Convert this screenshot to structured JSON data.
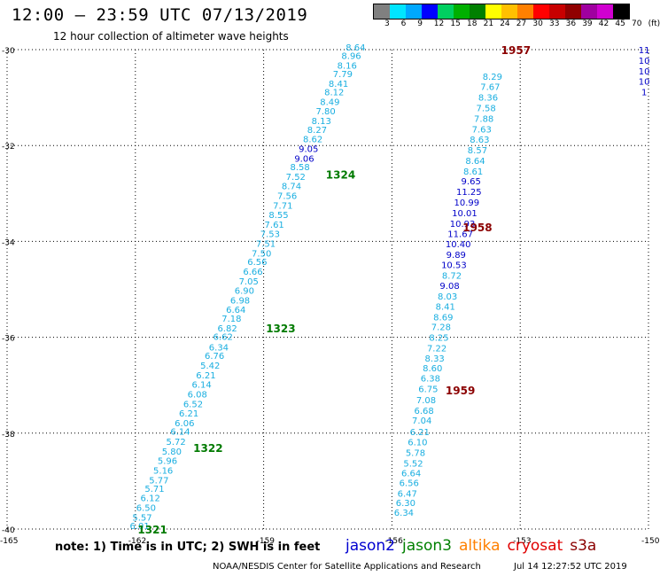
{
  "title": "12:00 – 23:59 UTC 07/13/2019",
  "subtitle": "12 hour collection of altimeter wave heights",
  "colorbar": {
    "labels": [
      "3",
      "6",
      "9",
      "12",
      "15",
      "18",
      "21",
      "24",
      "27",
      "30",
      "33",
      "36",
      "39",
      "42",
      "45",
      "70",
      "(ft)"
    ],
    "colors": [
      "#808080",
      "#00e5ff",
      "#00a8ff",
      "#0000ff",
      "#00d060",
      "#00b000",
      "#008000",
      "#ffff00",
      "#ffc000",
      "#ff8000",
      "#ff0000",
      "#c80000",
      "#900000",
      "#a000a0",
      "#d000d0",
      "#000000"
    ]
  },
  "note": "note:  1) Time is in UTC;  2) SWH is in feet",
  "legend": [
    {
      "label": "jason2",
      "color": "#0000d0"
    },
    {
      "label": "jason3",
      "color": "#008000"
    },
    {
      "label": "altika",
      "color": "#ff8000"
    },
    {
      "label": "cryosat",
      "color": "#e00000"
    },
    {
      "label": "s3a",
      "color": "#8b0000"
    }
  ],
  "credit": "NOAA/NESDIS Center for Satellite Applications and Research",
  "timestamp": "Jul 14 12:27:52 UTC 2019",
  "axes": {
    "lat_labels": [
      "-30",
      "-32",
      "-34",
      "-36",
      "-38",
      "-40"
    ],
    "lon_labels": [
      "-165",
      "-162",
      "-159",
      "-156",
      "-153",
      "-150"
    ]
  },
  "tracks": [
    {
      "name": "track-1321-1324",
      "color": "#19aee0",
      "points": [
        {
          "lon": -161.9,
          "lat": -39.93,
          "v": "6.01"
        },
        {
          "lon": -161.84,
          "lat": -39.75,
          "v": "5.57"
        },
        {
          "lon": -161.75,
          "lat": -39.55,
          "v": "6.50"
        },
        {
          "lon": -161.65,
          "lat": -39.34,
          "v": "6.12"
        },
        {
          "lon": -161.55,
          "lat": -39.15,
          "v": "5.71"
        },
        {
          "lon": -161.45,
          "lat": -38.97,
          "v": "5.77"
        },
        {
          "lon": -161.35,
          "lat": -38.77,
          "v": "5.16"
        },
        {
          "lon": -161.25,
          "lat": -38.57,
          "v": "5.96"
        },
        {
          "lon": -161.15,
          "lat": -38.37,
          "v": "5.80"
        },
        {
          "lon": -161.05,
          "lat": -38.17,
          "v": "5.72"
        },
        {
          "lon": -160.95,
          "lat": -37.96,
          "v": "6.14"
        },
        {
          "lon": -160.85,
          "lat": -37.78,
          "v": "6.06"
        },
        {
          "lon": -160.75,
          "lat": -37.58,
          "v": "6.21"
        },
        {
          "lon": -160.65,
          "lat": -37.38,
          "v": "6.52"
        },
        {
          "lon": -160.55,
          "lat": -37.18,
          "v": "6.08"
        },
        {
          "lon": -160.45,
          "lat": -36.98,
          "v": "6.14"
        },
        {
          "lon": -160.35,
          "lat": -36.78,
          "v": "6.21"
        },
        {
          "lon": -160.25,
          "lat": -36.58,
          "v": "5.42"
        },
        {
          "lon": -160.15,
          "lat": -36.38,
          "v": "6.76"
        },
        {
          "lon": -160.05,
          "lat": -36.2,
          "v": "6.34"
        },
        {
          "lon": -159.95,
          "lat": -35.98,
          "v": "6.62"
        },
        {
          "lon": -159.85,
          "lat": -35.8,
          "v": "6.82"
        },
        {
          "lon": -159.75,
          "lat": -35.6,
          "v": "7.18"
        },
        {
          "lon": -159.65,
          "lat": -35.42,
          "v": "6.64"
        },
        {
          "lon": -159.55,
          "lat": -35.22,
          "v": "6.98"
        },
        {
          "lon": -159.45,
          "lat": -35.02,
          "v": "6.90"
        },
        {
          "lon": -159.35,
          "lat": -34.82,
          "v": "7.05"
        },
        {
          "lon": -159.25,
          "lat": -34.62,
          "v": "6.66"
        },
        {
          "lon": -159.15,
          "lat": -34.42,
          "v": "6.56"
        },
        {
          "lon": -159.05,
          "lat": -34.24,
          "v": "7.50"
        },
        {
          "lon": -158.95,
          "lat": -34.04,
          "v": "7.51"
        },
        {
          "lon": -158.85,
          "lat": -33.84,
          "v": "7.53"
        },
        {
          "lon": -158.75,
          "lat": -33.64,
          "v": "7.61"
        },
        {
          "lon": -158.65,
          "lat": -33.44,
          "v": "8.55"
        },
        {
          "lon": -158.55,
          "lat": -33.24,
          "v": "7.71"
        },
        {
          "lon": -158.45,
          "lat": -33.04,
          "v": "7.56"
        },
        {
          "lon": -158.35,
          "lat": -32.84,
          "v": "8.74"
        },
        {
          "lon": -158.25,
          "lat": -32.64,
          "v": "7.52"
        },
        {
          "lon": -158.15,
          "lat": -32.44,
          "v": "8.58"
        },
        {
          "lon": -158.05,
          "lat": -32.26,
          "v": "9.06",
          "c": "#0000c8"
        },
        {
          "lon": -157.95,
          "lat": -32.06,
          "v": "9.05",
          "c": "#0000c8"
        },
        {
          "lon": -157.85,
          "lat": -31.86,
          "v": "8.62"
        },
        {
          "lon": -157.75,
          "lat": -31.66,
          "v": "8.27"
        },
        {
          "lon": -157.65,
          "lat": -31.48,
          "v": "8.13"
        },
        {
          "lon": -157.55,
          "lat": -31.28,
          "v": "7.80"
        },
        {
          "lon": -157.45,
          "lat": -31.08,
          "v": "8.49"
        },
        {
          "lon": -157.35,
          "lat": -30.88,
          "v": "8.12"
        },
        {
          "lon": -157.25,
          "lat": -30.7,
          "v": "8.41"
        },
        {
          "lon": -157.15,
          "lat": -30.5,
          "v": "7.79"
        },
        {
          "lon": -157.05,
          "lat": -30.32,
          "v": "8.16"
        },
        {
          "lon": -156.95,
          "lat": -30.12,
          "v": "8.96"
        },
        {
          "lon": -156.85,
          "lat": -29.94,
          "v": "8.64"
        }
      ]
    },
    {
      "name": "track-1957-1959",
      "color": "#19aee0",
      "points": [
        {
          "lon": -155.72,
          "lat": -39.65,
          "v": "6.34"
        },
        {
          "lon": -155.68,
          "lat": -39.45,
          "v": "6.30"
        },
        {
          "lon": -155.64,
          "lat": -39.25,
          "v": "6.47"
        },
        {
          "lon": -155.6,
          "lat": -39.03,
          "v": "6.56"
        },
        {
          "lon": -155.55,
          "lat": -38.83,
          "v": "6.64"
        },
        {
          "lon": -155.5,
          "lat": -38.62,
          "v": "5.52"
        },
        {
          "lon": -155.45,
          "lat": -38.4,
          "v": "5.78"
        },
        {
          "lon": -155.4,
          "lat": -38.18,
          "v": "6.10"
        },
        {
          "lon": -155.35,
          "lat": -37.97,
          "v": "6.21"
        },
        {
          "lon": -155.3,
          "lat": -37.73,
          "v": "7.04"
        },
        {
          "lon": -155.25,
          "lat": -37.52,
          "v": "6.68"
        },
        {
          "lon": -155.2,
          "lat": -37.3,
          "v": "7.08"
        },
        {
          "lon": -155.15,
          "lat": -37.07,
          "v": "6.75"
        },
        {
          "lon": -155.1,
          "lat": -36.85,
          "v": "6.38"
        },
        {
          "lon": -155.05,
          "lat": -36.64,
          "v": "8.60"
        },
        {
          "lon": -155.0,
          "lat": -36.43,
          "v": "8.33"
        },
        {
          "lon": -154.95,
          "lat": -36.22,
          "v": "7.22"
        },
        {
          "lon": -154.9,
          "lat": -36.0,
          "v": "8.25"
        },
        {
          "lon": -154.85,
          "lat": -35.78,
          "v": "7.28"
        },
        {
          "lon": -154.8,
          "lat": -35.57,
          "v": "8.69"
        },
        {
          "lon": -154.75,
          "lat": -35.35,
          "v": "8.41"
        },
        {
          "lon": -154.7,
          "lat": -35.14,
          "v": "8.03"
        },
        {
          "lon": -154.65,
          "lat": -34.92,
          "v": "9.08",
          "c": "#0000c8"
        },
        {
          "lon": -154.6,
          "lat": -34.7,
          "v": "8.72"
        },
        {
          "lon": -154.55,
          "lat": -34.48,
          "v": "10.53",
          "c": "#0000c8"
        },
        {
          "lon": -154.5,
          "lat": -34.27,
          "v": "9.89",
          "c": "#0000c8"
        },
        {
          "lon": -154.45,
          "lat": -34.05,
          "v": "10.40",
          "c": "#0000c8"
        },
        {
          "lon": -154.4,
          "lat": -33.84,
          "v": "11.67",
          "c": "#0000c8"
        },
        {
          "lon": -154.35,
          "lat": -33.62,
          "v": "10.93",
          "c": "#0000c8"
        },
        {
          "lon": -154.3,
          "lat": -33.4,
          "v": "10.01",
          "c": "#0000c8"
        },
        {
          "lon": -154.25,
          "lat": -33.18,
          "v": "10.99",
          "c": "#0000c8"
        },
        {
          "lon": -154.2,
          "lat": -32.96,
          "v": "11.25",
          "c": "#0000c8"
        },
        {
          "lon": -154.15,
          "lat": -32.74,
          "v": "9.65",
          "c": "#0000c8"
        },
        {
          "lon": -154.1,
          "lat": -32.53,
          "v": "8.61"
        },
        {
          "lon": -154.05,
          "lat": -32.31,
          "v": "8.64"
        },
        {
          "lon": -154.0,
          "lat": -32.09,
          "v": "8.57"
        },
        {
          "lon": -153.95,
          "lat": -31.87,
          "v": "8.63"
        },
        {
          "lon": -153.9,
          "lat": -31.65,
          "v": "7.63"
        },
        {
          "lon": -153.85,
          "lat": -31.43,
          "v": "7.88"
        },
        {
          "lon": -153.8,
          "lat": -31.21,
          "v": "7.58"
        },
        {
          "lon": -153.75,
          "lat": -30.99,
          "v": "8.36"
        },
        {
          "lon": -153.7,
          "lat": -30.77,
          "v": "7.67"
        },
        {
          "lon": -153.65,
          "lat": -30.55,
          "v": "8.29"
        }
      ]
    },
    {
      "name": "track-right-edge",
      "color": "#0000c8",
      "points": [
        {
          "lon": -150.1,
          "lat": -30.0,
          "v": "11"
        },
        {
          "lon": -150.1,
          "lat": -30.22,
          "v": "10"
        },
        {
          "lon": -150.1,
          "lat": -30.44,
          "v": "10"
        },
        {
          "lon": -150.1,
          "lat": -30.66,
          "v": "10"
        },
        {
          "lon": -150.1,
          "lat": -30.88,
          "v": "1"
        }
      ]
    }
  ],
  "pass_labels": [
    {
      "text": "1321",
      "lon": -161.6,
      "lat": -40.0,
      "color": "#007a00"
    },
    {
      "text": "1322",
      "lon": -160.3,
      "lat": -38.3,
      "color": "#007a00"
    },
    {
      "text": "1323",
      "lon": -158.6,
      "lat": -35.8,
      "color": "#007a00"
    },
    {
      "text": "1324",
      "lon": -157.2,
      "lat": -32.6,
      "color": "#007a00"
    },
    {
      "text": "1957",
      "lon": -153.1,
      "lat": -30.0,
      "color": "#8b0000"
    },
    {
      "text": "1958",
      "lon": -154.0,
      "lat": -33.7,
      "color": "#8b0000"
    },
    {
      "text": "1959",
      "lon": -154.4,
      "lat": -37.1,
      "color": "#8b0000"
    }
  ]
}
